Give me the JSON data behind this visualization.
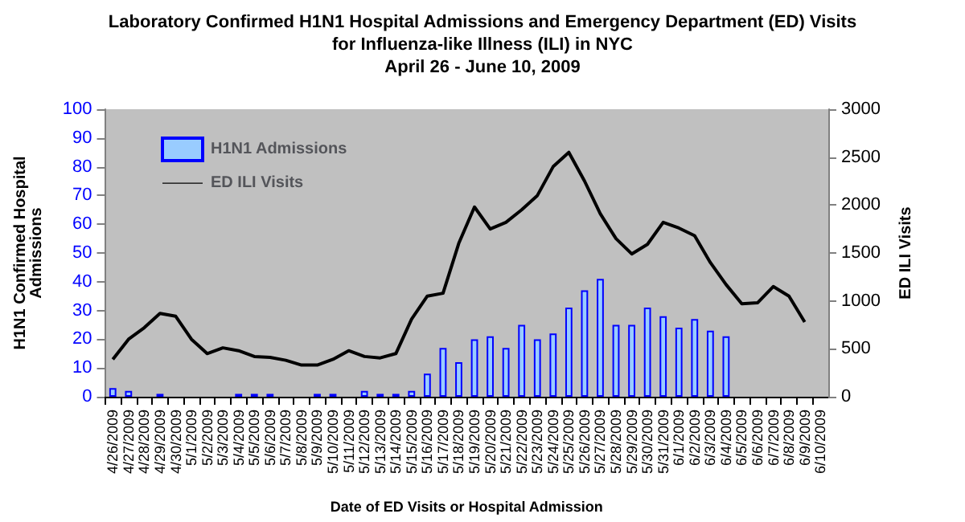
{
  "chart_data": {
    "type": "bar",
    "title": "Laboratory Confirmed H1N1 Hospital Admissions and Emergency Department (ED) Visits\nfor Influenza-like Illness (ILI) in NYC\nApril 26 - June 10, 2009",
    "xlabel": "Date of ED Visits or Hospital Admission",
    "ylabel": "H1N1 Confirmed Hospital\nAdmissions",
    "y2label": "ED ILI Visits",
    "categories": [
      "4/26/2009",
      "4/27/2009",
      "4/28/2009",
      "4/29/2009",
      "4/30/2009",
      "5/1/2009",
      "5/2/2009",
      "5/3/2009",
      "5/4/2009",
      "5/5/2009",
      "5/6/2009",
      "5/7/2009",
      "5/8/2009",
      "5/9/2009",
      "5/10/2009",
      "5/11/2009",
      "5/12/2009",
      "5/13/2009",
      "5/14/2009",
      "5/15/2009",
      "5/16/2009",
      "5/17/2009",
      "5/18/2009",
      "5/19/2009",
      "5/20/2009",
      "5/21/2009",
      "5/22/2009",
      "5/23/2009",
      "5/24/2009",
      "5/25/2009",
      "5/26/2009",
      "5/27/2009",
      "5/28/2009",
      "5/29/2009",
      "5/30/2009",
      "5/31/2009",
      "6/1/2009",
      "6/2/2009",
      "6/3/2009",
      "6/4/2009",
      "6/5/2009",
      "6/6/2009",
      "6/7/2009",
      "6/8/2009",
      "6/9/2009",
      "6/10/2009"
    ],
    "series": [
      {
        "name": "H1N1 Admissions",
        "color": "#99ccff",
        "values": [
          3,
          2,
          0,
          1,
          0,
          0,
          0,
          0,
          1,
          1,
          1,
          0,
          0,
          1,
          1,
          0,
          2,
          1,
          1,
          2,
          8,
          17,
          12,
          20,
          21,
          17,
          25,
          20,
          22,
          31,
          37,
          41,
          25,
          25,
          31,
          28,
          24,
          27,
          23,
          21,
          null,
          null,
          null,
          null,
          null,
          null
        ]
      },
      {
        "name": "ED ILI Visits",
        "type": "line",
        "axis": "y2",
        "color": "#000000",
        "values": [
          390,
          600,
          720,
          870,
          840,
          600,
          450,
          510,
          480,
          420,
          410,
          380,
          330,
          330,
          390,
          480,
          420,
          405,
          450,
          810,
          1050,
          1080,
          1600,
          1980,
          1750,
          1820,
          1950,
          2100,
          2400,
          2550,
          2250,
          1910,
          1650,
          1490,
          1590,
          1820,
          1760,
          1680,
          1400,
          1170,
          970,
          980,
          1150,
          1050,
          780,
          null
        ]
      }
    ],
    "ylim": [
      0,
      100
    ],
    "yticks": [
      0,
      10,
      20,
      30,
      40,
      50,
      60,
      70,
      80,
      90,
      100
    ],
    "y2lim": [
      0,
      3000
    ],
    "y2ticks": [
      0,
      500,
      1000,
      1500,
      2000,
      2500,
      3000
    ],
    "legend": "top left",
    "grid": false,
    "marker": "none",
    "line_style": "solid"
  }
}
